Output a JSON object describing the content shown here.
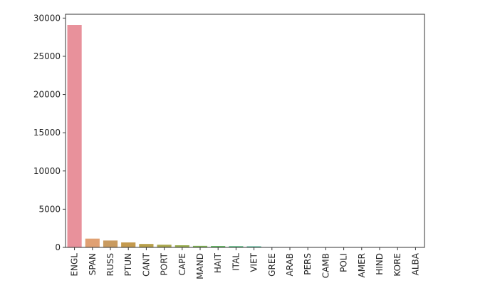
{
  "chart_data": {
    "type": "bar",
    "title": "",
    "xlabel": "",
    "ylabel": "",
    "ylim": [
      0,
      30500
    ],
    "yticks": [
      0,
      5000,
      10000,
      15000,
      20000,
      25000,
      30000
    ],
    "ytick_labels": [
      "0",
      "5000",
      "10000",
      "15000",
      "20000",
      "25000",
      "30000"
    ],
    "grid": false,
    "legend": "none",
    "categories": [
      "ENGL",
      "SPAN",
      "RUSS",
      "PTUN",
      "CANT",
      "PORT",
      "CAPE",
      "MAND",
      "HAIT",
      "ITAL",
      "VIET",
      "GREE",
      "ARAB",
      "PERS",
      "CAMB",
      "POLI",
      "AMER",
      "HIND",
      "KORE",
      "ALBA"
    ],
    "values": [
      29100,
      1150,
      900,
      650,
      450,
      350,
      280,
      200,
      180,
      160,
      140,
      50,
      40,
      35,
      30,
      28,
      25,
      20,
      18,
      15
    ],
    "colors": [
      "#e8919b",
      "#e0a072",
      "#c99b60",
      "#c49a4e",
      "#b8a04a",
      "#a8a64b",
      "#98ad4f",
      "#7fb255",
      "#5fb65e",
      "#4fb87a",
      "#4ab592",
      "#4cb3a3",
      "#4fb0b3",
      "#54aac4",
      "#62a2d5",
      "#8a99df",
      "#ad8ee0",
      "#c584d8",
      "#d77cc8",
      "#e07db2"
    ]
  }
}
